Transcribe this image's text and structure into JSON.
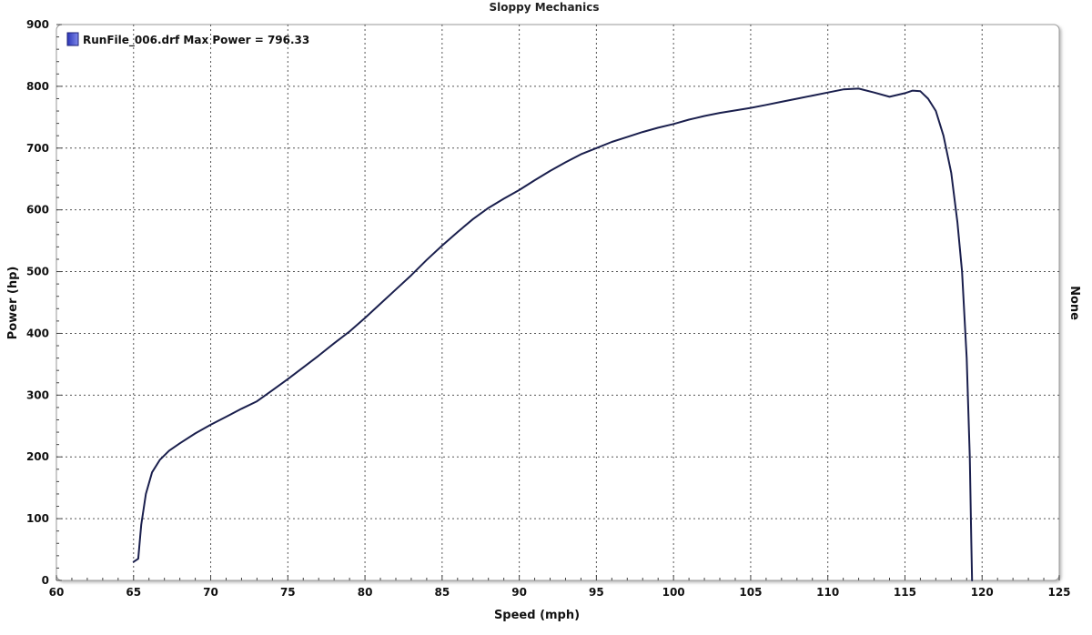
{
  "chart_data": {
    "type": "line",
    "title": "Sloppy Mechanics",
    "xlabel": "Speed (mph)",
    "ylabel": "Power (hp)",
    "right_label": "None",
    "xlim": [
      60,
      125
    ],
    "ylim": [
      0,
      900
    ],
    "x_ticks": [
      "60",
      "65",
      "70",
      "75",
      "80",
      "85",
      "90",
      "95",
      "100",
      "105",
      "110",
      "115",
      "120",
      "125"
    ],
    "y_ticks": [
      "0",
      "100",
      "200",
      "300",
      "400",
      "500",
      "600",
      "700",
      "800",
      "900"
    ],
    "grid": true,
    "legend_position": "top-left",
    "series": [
      {
        "name": "RunFile_006.drf Max Power = 796.33",
        "color": "#1a1f4d",
        "x": [
          65.0,
          65.3,
          65.5,
          65.8,
          66.2,
          66.7,
          67.3,
          68.0,
          69.0,
          70.0,
          71.0,
          72.0,
          73.0,
          74.0,
          75.0,
          76.0,
          77.0,
          78.0,
          79.0,
          80.0,
          81.0,
          82.0,
          83.0,
          84.0,
          85.0,
          86.0,
          87.0,
          88.0,
          89.0,
          90.0,
          91.0,
          92.0,
          93.0,
          94.0,
          95.0,
          96.0,
          97.0,
          98.0,
          99.0,
          100.0,
          101.0,
          102.0,
          103.0,
          104.0,
          105.0,
          106.0,
          107.0,
          108.0,
          109.0,
          110.0,
          111.0,
          112.0,
          113.0,
          114.0,
          115.0,
          115.5,
          116.0,
          116.5,
          117.0,
          117.5,
          118.0,
          118.4,
          118.7,
          119.0,
          119.2,
          119.3,
          119.35
        ],
        "y": [
          30,
          35,
          90,
          140,
          175,
          195,
          210,
          222,
          238,
          252,
          265,
          278,
          290,
          308,
          326,
          345,
          364,
          384,
          403,
          425,
          448,
          471,
          494,
          519,
          542,
          564,
          585,
          603,
          618,
          632,
          648,
          663,
          677,
          690,
          700,
          710,
          718,
          726,
          733,
          739,
          746,
          752,
          757,
          761,
          765,
          770,
          775,
          780,
          785,
          790,
          795,
          796.33,
          790,
          783,
          789,
          793,
          792,
          780,
          760,
          720,
          660,
          580,
          500,
          360,
          200,
          60,
          0
        ]
      }
    ]
  }
}
